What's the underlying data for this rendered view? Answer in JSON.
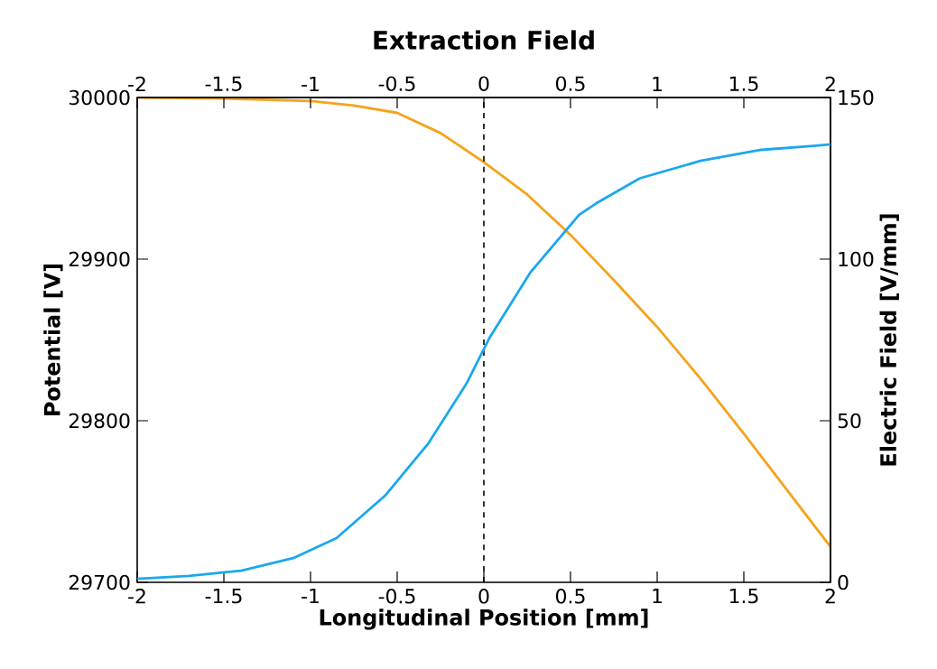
{
  "chart_data": {
    "type": "line",
    "title": "Extraction Field",
    "xlabel": "Longitudinal Position [mm]",
    "ylabel": "Potential [V]",
    "y2label": "Electric Field [V/mm]",
    "xlim": [
      -2,
      2
    ],
    "xticks": [
      -2,
      -1.5,
      -1,
      -0.5,
      0,
      0.5,
      1,
      1.5,
      2
    ],
    "x2lim": [
      -2,
      2
    ],
    "x2ticks": [
      -2,
      -1.5,
      -1,
      -0.5,
      0,
      0.5,
      1,
      1.5,
      2
    ],
    "ylim": [
      29700,
      30000
    ],
    "yticks": [
      29700,
      29800,
      29900,
      30000
    ],
    "y2lim": [
      0,
      150
    ],
    "y2ticks": [
      0,
      50,
      100,
      150
    ],
    "grid": false,
    "marker": "none",
    "line_style": "solid",
    "series": [
      {
        "color": "#f5a31c",
        "x": [
          -2,
          -1.5,
          -1,
          -0.75,
          -0.5,
          -0.25,
          0,
          0.25,
          0.5,
          0.75,
          1,
          1.25,
          1.5,
          1.75,
          2
        ],
        "values": [
          30000,
          29999.4,
          29997.8,
          29995,
          29990.5,
          29978,
          29960,
          29940,
          29915,
          29887,
          29858,
          29826,
          29792,
          29757,
          29722
        ]
      },
      {
        "color": "#1aa8ec",
        "axis": "y2",
        "x": [
          -2,
          -1.7,
          -1.4,
          -1.1,
          -0.85,
          -0.57,
          -0.32,
          -0.1,
          0.03,
          0.27,
          0.55,
          0.65,
          0.9,
          1.25,
          1.6,
          1.9,
          2
        ],
        "values": [
          1.1,
          2.0,
          3.6,
          7.5,
          13.7,
          26.8,
          43,
          61.5,
          75.4,
          96,
          113.7,
          117.3,
          125,
          130.4,
          133.8,
          135,
          135.5
        ]
      }
    ],
    "ref_lines": [
      {
        "axis": "x",
        "value": 0,
        "line_style": "dashed",
        "color": "#000000"
      }
    ]
  }
}
